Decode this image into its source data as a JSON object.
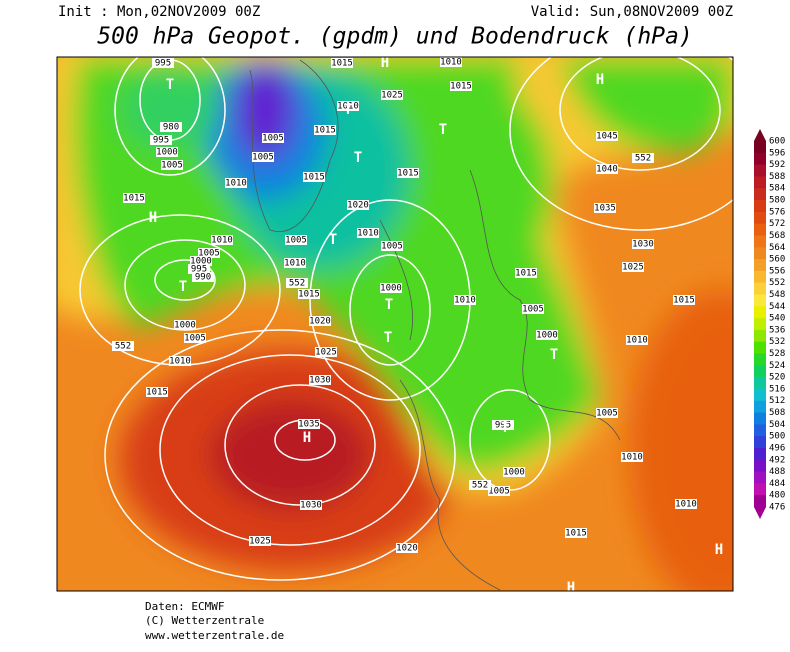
{
  "header": {
    "init": "Init : Mon,02NOV2009 00Z",
    "valid": "Valid: Sun,08NOV2009 00Z",
    "title": "500 hPa Geopot. (gpdm) und Bodendruck (hPa)"
  },
  "colorbar": {
    "levels": [
      600,
      596,
      592,
      588,
      584,
      580,
      576,
      572,
      568,
      564,
      560,
      556,
      552,
      548,
      544,
      540,
      536,
      532,
      528,
      524,
      520,
      516,
      512,
      508,
      504,
      500,
      496,
      492,
      488,
      484,
      480,
      476
    ],
    "colors": [
      "#780020",
      "#900028",
      "#a8102c",
      "#bc1c24",
      "#c82c1c",
      "#d83c14",
      "#e04c10",
      "#e86010",
      "#f07418",
      "#f08820",
      "#f4a028",
      "#f8b830",
      "#fcd038",
      "#fce83c",
      "#e8f000",
      "#c0f000",
      "#8ce800",
      "#50e000",
      "#28d828",
      "#10d060",
      "#10c8a0",
      "#10c0d0",
      "#10a0e0",
      "#1080e0",
      "#2060e0",
      "#3040d8",
      "#5020d0",
      "#7810c8",
      "#a010c0",
      "#c010b0",
      "#a00090"
    ]
  },
  "map": {
    "isobar_labels": [
      "995",
      "980",
      "995",
      "1000",
      "1005",
      "1010",
      "1015",
      "1010",
      "1005",
      "1000",
      "995",
      "990",
      "1000",
      "1005",
      "1010",
      "1015",
      "1005",
      "1010",
      "552",
      "1015",
      "1020",
      "1025",
      "1030",
      "1035",
      "1030",
      "1025",
      "1020",
      "1015",
      "1010",
      "1025",
      "1015",
      "1015",
      "1020",
      "1010",
      "1005",
      "1000",
      "1010",
      "1015",
      "1005",
      "1005",
      "1010",
      "1015",
      "1045",
      "552",
      "1040",
      "1035",
      "1030",
      "1025",
      "1015",
      "1005",
      "1000",
      "1010",
      "1015",
      "1005",
      "995",
      "1010",
      "1000",
      "1005",
      "552",
      "1010",
      "1015",
      "552"
    ],
    "centers": [
      "H",
      "H",
      "T",
      "T",
      "T",
      "T",
      "H",
      "T",
      "T",
      "T",
      "T",
      "T",
      "T",
      "H",
      "H",
      "H"
    ]
  },
  "footer": {
    "lines": [
      "Daten: ECMWF",
      "(C) Wetterzentrale",
      "www.wetterzentrale.de"
    ]
  }
}
